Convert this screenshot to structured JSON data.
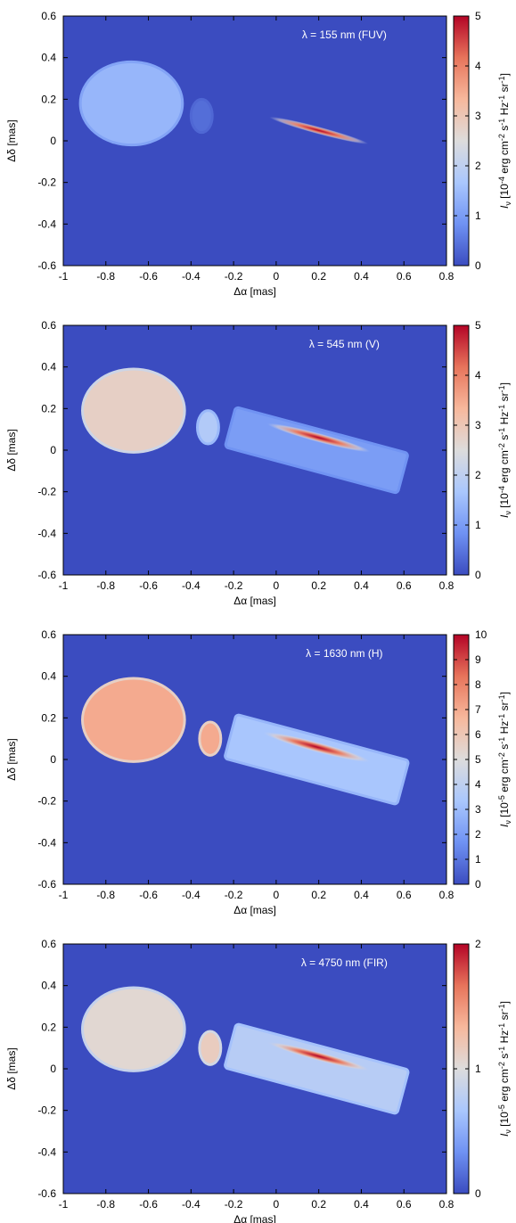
{
  "figure": {
    "xlabel": "Δα [mas]",
    "ylabel": "Δδ [mas]",
    "xticks": [
      "-1",
      "-0.8",
      "-0.6",
      "-0.4",
      "-0.2",
      "0",
      "0.2",
      "0.4",
      "0.6",
      "0.8"
    ],
    "yticks": [
      "0.6",
      "0.4",
      "0.2",
      "0",
      "-0.2",
      "-0.4",
      "-0.6"
    ],
    "colormap": [
      "#3b4cc0",
      "#6f92f3",
      "#aac7fd",
      "#dddcdc",
      "#f7b89c",
      "#e7745b",
      "#b40426"
    ]
  },
  "chart_data": [
    {
      "type": "heatmap",
      "annotation": "λ = 155 nm (FUV)",
      "xlim": [
        -1,
        0.8
      ],
      "ylim": [
        -0.6,
        0.6
      ],
      "colorbar": {
        "label_main": "I",
        "label_sub": "ν",
        "label_mid": " [10",
        "label_exp": "-4",
        "label_tail": " erg cm",
        "label_exp2": "-2",
        "label_tail2": " s",
        "label_exp3": "-1",
        "label_tail3": " Hz",
        "label_exp4": "-1",
        "label_tail4": " sr",
        "label_exp5": "-1",
        "label_end": "]",
        "range": [
          0,
          5
        ],
        "ticks": [
          "0",
          "1",
          "2",
          "3",
          "4",
          "5"
        ]
      },
      "components": [
        {
          "name": "star",
          "cx": -0.68,
          "cy": 0.18,
          "rx": 0.24,
          "ry": 0.2,
          "intensity": 1.4
        },
        {
          "name": "stream",
          "cx": -0.35,
          "cy": 0.12,
          "rx": 0.05,
          "ry": 0.08,
          "intensity": 0.4
        },
        {
          "name": "disk-hotspot",
          "cx": 0.2,
          "cy": 0.05,
          "rx": 0.24,
          "ry": 0.018,
          "angle_deg": -15,
          "intensity": 5.0
        }
      ]
    },
    {
      "type": "heatmap",
      "annotation": "λ = 545 nm (V)",
      "xlim": [
        -1,
        0.8
      ],
      "ylim": [
        -0.6,
        0.6
      ],
      "colorbar": {
        "label_main": "I",
        "label_sub": "ν",
        "label_mid": " [10",
        "label_exp": "-4",
        "label_tail": " erg cm",
        "label_exp2": "-2",
        "label_tail2": " s",
        "label_exp3": "-1",
        "label_tail3": " Hz",
        "label_exp4": "-1",
        "label_tail4": " sr",
        "label_exp5": "-1",
        "label_end": "]",
        "range": [
          0,
          5
        ],
        "ticks": [
          "0",
          "1",
          "2",
          "3",
          "4",
          "5"
        ]
      },
      "components": [
        {
          "name": "star",
          "cx": -0.67,
          "cy": 0.19,
          "rx": 0.24,
          "ry": 0.2,
          "intensity": 2.8
        },
        {
          "name": "stream",
          "cx": -0.32,
          "cy": 0.11,
          "rx": 0.05,
          "ry": 0.08,
          "intensity": 1.8
        },
        {
          "name": "disk",
          "cx": 0.19,
          "cy": 0.0,
          "rx": 0.42,
          "ry": 0.1,
          "angle_deg": -15,
          "intensity": 1.0
        },
        {
          "name": "disk-hotspot",
          "cx": 0.2,
          "cy": 0.06,
          "rx": 0.25,
          "ry": 0.022,
          "angle_deg": -15,
          "intensity": 5.0
        }
      ]
    },
    {
      "type": "heatmap",
      "annotation": "λ = 1630 nm (H)",
      "xlim": [
        -1,
        0.8
      ],
      "ylim": [
        -0.6,
        0.6
      ],
      "colorbar": {
        "label_main": "I",
        "label_sub": "ν",
        "label_mid": " [10",
        "label_exp": "-5",
        "label_tail": " erg cm",
        "label_exp2": "-2",
        "label_tail2": " s",
        "label_exp3": "-1",
        "label_tail3": " Hz",
        "label_exp4": "-1",
        "label_tail4": " sr",
        "label_exp5": "-1",
        "label_end": "]",
        "range": [
          0,
          10
        ],
        "ticks": [
          "0",
          "1",
          "2",
          "3",
          "4",
          "5",
          "6",
          "7",
          "8",
          "9",
          "10"
        ]
      },
      "components": [
        {
          "name": "star",
          "cx": -0.67,
          "cy": 0.19,
          "rx": 0.24,
          "ry": 0.2,
          "intensity": 7.0
        },
        {
          "name": "stream",
          "cx": -0.31,
          "cy": 0.1,
          "rx": 0.05,
          "ry": 0.08,
          "intensity": 7.0
        },
        {
          "name": "disk",
          "cx": 0.19,
          "cy": 0.0,
          "rx": 0.42,
          "ry": 0.11,
          "angle_deg": -15,
          "intensity": 3.3
        },
        {
          "name": "disk-hotspot",
          "cx": 0.19,
          "cy": 0.06,
          "rx": 0.26,
          "ry": 0.025,
          "angle_deg": -15,
          "intensity": 10.0
        }
      ]
    },
    {
      "type": "heatmap",
      "annotation": "λ = 4750 nm (FIR)",
      "xlim": [
        -1,
        0.8
      ],
      "ylim": [
        -0.6,
        0.6
      ],
      "colorbar": {
        "label_main": "I",
        "label_sub": "ν",
        "label_mid": " [10",
        "label_exp": "-5",
        "label_tail": " erg cm",
        "label_exp2": "-2",
        "label_tail2": " s",
        "label_exp3": "-1",
        "label_tail3": " Hz",
        "label_exp4": "-1",
        "label_tail4": " sr",
        "label_exp5": "-1",
        "label_end": "]",
        "range": [
          0,
          2
        ],
        "ticks": [
          "0",
          "1",
          "2"
        ]
      },
      "components": [
        {
          "name": "star",
          "cx": -0.67,
          "cy": 0.19,
          "rx": 0.24,
          "ry": 0.2,
          "intensity": 1.05
        },
        {
          "name": "stream",
          "cx": -0.31,
          "cy": 0.1,
          "rx": 0.05,
          "ry": 0.08,
          "intensity": 1.15
        },
        {
          "name": "disk",
          "cx": 0.19,
          "cy": 0.0,
          "rx": 0.42,
          "ry": 0.11,
          "angle_deg": -15,
          "intensity": 0.75
        },
        {
          "name": "disk-hotspot",
          "cx": 0.2,
          "cy": 0.06,
          "rx": 0.25,
          "ry": 0.022,
          "angle_deg": -15,
          "intensity": 2.0
        }
      ]
    }
  ]
}
